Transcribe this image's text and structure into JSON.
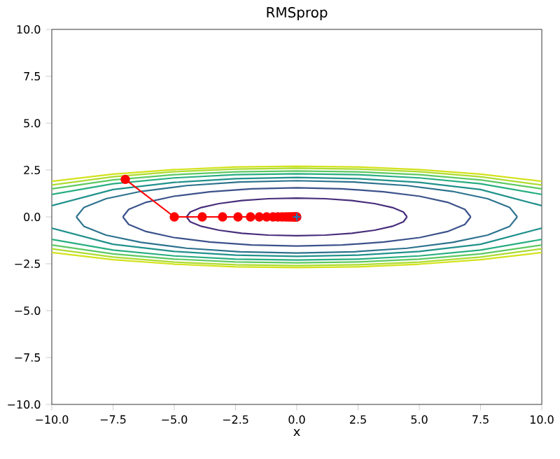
{
  "chart_data": {
    "type": "line",
    "title": "RMSprop",
    "xlabel": "x",
    "xlim": [
      -10,
      10
    ],
    "ylim": [
      -10,
      10
    ],
    "xticks": [
      {
        "value": -10,
        "label": "−10.0"
      },
      {
        "value": -7.5,
        "label": "−7.5"
      },
      {
        "value": -5,
        "label": "−5.0"
      },
      {
        "value": -2.5,
        "label": "−2.5"
      },
      {
        "value": 0,
        "label": "0.0"
      },
      {
        "value": 2.5,
        "label": "2.5"
      },
      {
        "value": 5,
        "label": "5.0"
      },
      {
        "value": 7.5,
        "label": "7.5"
      },
      {
        "value": 10,
        "label": "10.0"
      }
    ],
    "yticks": [
      {
        "value": -10,
        "label": "−10.0"
      },
      {
        "value": -7.5,
        "label": "−7.5"
      },
      {
        "value": -5,
        "label": "−5.0"
      },
      {
        "value": -2.5,
        "label": "−2.5"
      },
      {
        "value": 0,
        "label": "0.0"
      },
      {
        "value": 2.5,
        "label": "2.5"
      },
      {
        "value": 5,
        "label": "5.0"
      },
      {
        "value": 7.5,
        "label": "7.5"
      },
      {
        "value": 10,
        "label": "10.0"
      }
    ],
    "grid": false,
    "series": [
      {
        "color": "#472d7b",
        "marker": "none",
        "x": [
          4.5,
          4.35,
          3.9,
          3.18,
          2.25,
          1.17,
          0,
          -1.17,
          -2.25,
          -3.18,
          -3.9,
          -4.35,
          -4.5,
          null,
          -4.5,
          -4.35,
          -3.9,
          -3.18,
          -2.25,
          -1.17,
          0,
          1.17,
          2.25,
          3.18,
          3.9,
          4.35,
          4.5
        ],
        "values": [
          0,
          0.26,
          0.5,
          0.71,
          0.87,
          0.97,
          1,
          0.97,
          0.87,
          0.71,
          0.5,
          0.26,
          0,
          null,
          0,
          -0.26,
          -0.5,
          -0.71,
          -0.87,
          -0.97,
          -1,
          -0.97,
          -0.87,
          -0.71,
          -0.5,
          -0.26,
          0
        ]
      },
      {
        "color": "#3b528b",
        "marker": "none",
        "x": [
          7.1,
          6.86,
          6.15,
          5.02,
          3.55,
          1.84,
          0,
          -1.84,
          -3.55,
          -5.02,
          -6.15,
          -6.86,
          -7.1,
          null,
          -7.1,
          -6.86,
          -6.15,
          -5.02,
          -3.55,
          -1.84,
          0,
          1.84,
          3.55,
          5.02,
          6.15,
          6.86,
          7.1
        ],
        "values": [
          0,
          0.4,
          0.78,
          1.1,
          1.34,
          1.5,
          1.55,
          1.5,
          1.34,
          1.1,
          0.78,
          0.4,
          0,
          null,
          0,
          -0.4,
          -0.78,
          -1.1,
          -1.34,
          -1.5,
          -1.55,
          -1.5,
          -1.34,
          -1.1,
          -0.78,
          -0.4,
          0
        ]
      },
      {
        "color": "#2c728e",
        "marker": "none",
        "x": [
          9,
          8.69,
          7.79,
          6.36,
          4.5,
          2.33,
          0,
          -2.33,
          -4.5,
          -6.36,
          -7.79,
          -8.69,
          -9,
          null,
          -9,
          -8.69,
          -7.79,
          -6.36,
          -4.5,
          -2.33,
          0,
          2.33,
          4.5,
          6.36,
          7.79,
          8.69,
          9
        ],
        "values": [
          0,
          0.5,
          0.97,
          1.36,
          1.67,
          1.86,
          1.93,
          1.86,
          1.67,
          1.36,
          0.97,
          0.5,
          0,
          null,
          0,
          -0.5,
          -0.97,
          -1.36,
          -1.67,
          -1.86,
          -1.93,
          -1.86,
          -1.67,
          -1.36,
          -0.97,
          -0.5,
          0
        ]
      },
      {
        "color": "#21918c",
        "marker": "none",
        "x": [
          -10,
          -7.5,
          -5,
          -2.5,
          0,
          2.5,
          5,
          7.5,
          10,
          null,
          10,
          7.5,
          5,
          2.5,
          0,
          -2.5,
          -5,
          -7.5,
          -10
        ],
        "values": [
          0.6,
          1.46,
          1.84,
          2.04,
          2.1,
          2.04,
          1.84,
          1.46,
          0.6,
          null,
          -0.6,
          -1.46,
          -1.84,
          -2.04,
          -2.1,
          -2.04,
          -1.84,
          -1.46,
          -0.6
        ]
      },
      {
        "color": "#28ae80",
        "marker": "none",
        "x": [
          -10,
          -7.5,
          -5,
          -2.5,
          0,
          2.5,
          5,
          7.5,
          10,
          null,
          10,
          7.5,
          5,
          2.5,
          0,
          -2.5,
          -5,
          -7.5,
          -10
        ],
        "values": [
          1.2,
          1.77,
          2.08,
          2.25,
          2.3,
          2.25,
          2.08,
          1.77,
          1.2,
          null,
          -1.2,
          -1.77,
          -2.08,
          -2.25,
          -2.3,
          -2.25,
          -2.08,
          -1.77,
          -1.2
        ]
      },
      {
        "color": "#5ec962",
        "marker": "none",
        "x": [
          -10,
          -7.5,
          -5,
          -2.5,
          0,
          2.5,
          5,
          7.5,
          10,
          null,
          10,
          7.5,
          5,
          2.5,
          0,
          -2.5,
          -5,
          -7.5,
          -10
        ],
        "values": [
          1.5,
          1.97,
          2.25,
          2.4,
          2.45,
          2.4,
          2.25,
          1.97,
          1.5,
          null,
          -1.5,
          -1.97,
          -2.25,
          -2.4,
          -2.45,
          -2.4,
          -2.25,
          -1.97,
          -1.5
        ]
      },
      {
        "color": "#addc30",
        "marker": "none",
        "x": [
          -10,
          -7.5,
          -5,
          -2.5,
          0,
          2.5,
          5,
          7.5,
          10,
          null,
          10,
          7.5,
          5,
          2.5,
          0,
          -2.5,
          -5,
          -7.5,
          -10
        ],
        "values": [
          1.7,
          2.14,
          2.41,
          2.55,
          2.6,
          2.55,
          2.41,
          2.14,
          1.7,
          null,
          -1.7,
          -2.14,
          -2.41,
          -2.55,
          -2.6,
          -2.55,
          -2.41,
          -2.14,
          -1.7
        ]
      },
      {
        "color": "#d2e21b",
        "marker": "none",
        "x": [
          -10,
          -7.5,
          -5,
          -2.5,
          0,
          2.5,
          5,
          7.5,
          10,
          null,
          10,
          7.5,
          5,
          2.5,
          0,
          -2.5,
          -5,
          -7.5,
          -10
        ],
        "values": [
          1.9,
          2.28,
          2.52,
          2.66,
          2.7,
          2.66,
          2.52,
          2.28,
          1.9,
          null,
          -1.9,
          -2.28,
          -2.52,
          -2.66,
          -2.7,
          -2.66,
          -2.52,
          -2.28,
          -1.9
        ]
      },
      {
        "color": "#ff0000",
        "marker": "circle",
        "x": [
          -7,
          -5,
          -3.86,
          -3.03,
          -2.4,
          -1.89,
          -1.53,
          -1.23,
          -0.97,
          -0.77,
          -0.6,
          -0.46,
          -0.35,
          -0.26,
          -0.18,
          -0.12,
          -0.07,
          -0.03,
          0
        ],
        "values": [
          2,
          0,
          0,
          0,
          0,
          0,
          0,
          0,
          0,
          0,
          0,
          0,
          0,
          0,
          0,
          0,
          0,
          0,
          0
        ]
      },
      {
        "type": "scatter",
        "color": "#1f77b4",
        "marker": "cross",
        "x": [
          0
        ],
        "values": [
          0
        ]
      }
    ]
  }
}
